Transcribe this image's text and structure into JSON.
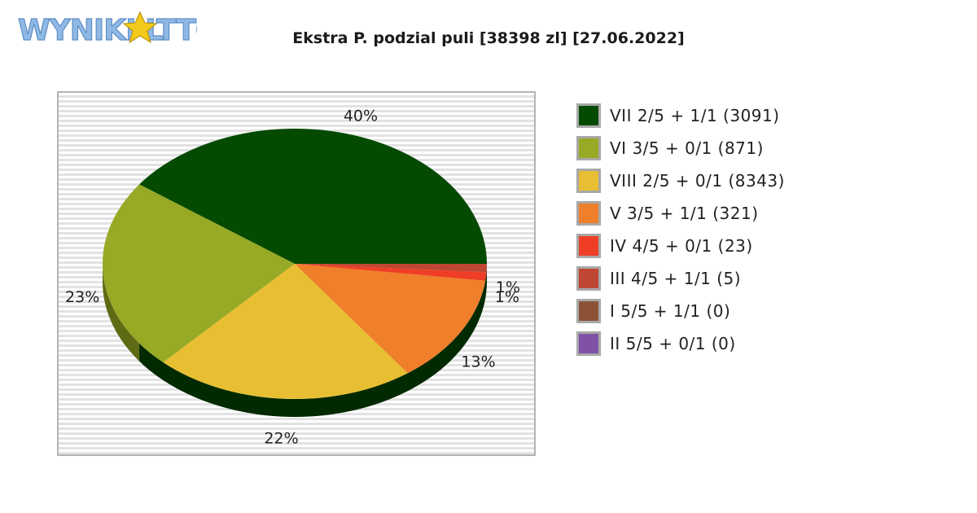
{
  "logo": {
    "text": "WYNIKI LOTTO",
    "colors": {
      "text": "#8fb9e4",
      "star": "#f2c81b"
    }
  },
  "chart_data": {
    "type": "pie",
    "title": "Ekstra P. podzial puli [38398 zl] [27.06.2022]",
    "slices": [
      {
        "label": "VII 2/5 + 1/1 (3091)",
        "value": 3091,
        "pct_label": "40%",
        "color": "#044a00",
        "side": "#022a00"
      },
      {
        "label": "VI 3/5 + 0/1 (871)",
        "value": 871,
        "pct_label": "23%",
        "color": "#97a925",
        "side": "#5e6a14"
      },
      {
        "label": "VIII 2/5 + 0/1 (8343)",
        "value": 8343,
        "pct_label": "22%",
        "color": "#e8bf33",
        "side": "#9c801e"
      },
      {
        "label": "V 3/5 + 1/1 (321)",
        "value": 321,
        "pct_label": "13%",
        "color": "#ef7f2a",
        "side": "#a55618"
      },
      {
        "label": "IV 4/5 + 0/1 (23)",
        "value": 23,
        "pct_label": "1%",
        "color": "#ef3e25",
        "side": "#a32715"
      },
      {
        "label": "III 4/5 + 1/1 (5)",
        "value": 5,
        "pct_label": "1%",
        "color": "#bf4632",
        "side": "#7f2c1e"
      },
      {
        "label": "I 5/5 + 1/1 (0)",
        "value": 0,
        "pct_label": "",
        "color": "#8b5238",
        "side": "#5b3422"
      },
      {
        "label": "II 5/5 + 0/1 (0)",
        "value": 0,
        "pct_label": "",
        "color": "#7f51a7",
        "side": "#52346d"
      }
    ],
    "legend_position": "right",
    "background": "striped-grid"
  }
}
